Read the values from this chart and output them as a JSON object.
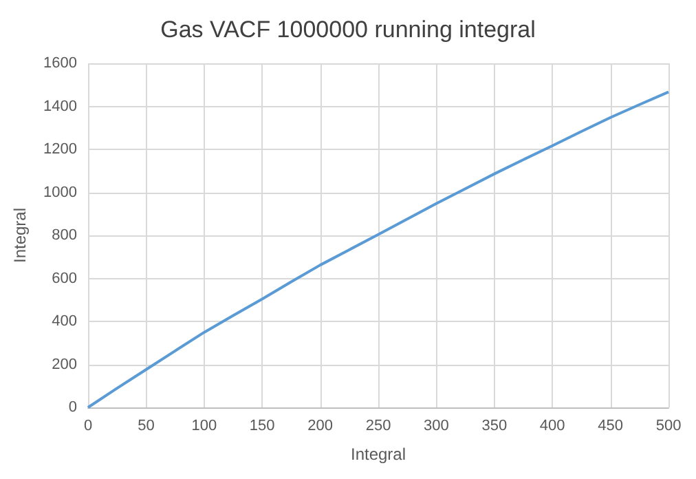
{
  "chart_data": {
    "type": "line",
    "title": "Gas VACF 1000000 running integral",
    "xlabel": "Integral",
    "ylabel": "Integral",
    "x": [
      0,
      25,
      50,
      75,
      100,
      125,
      150,
      175,
      200,
      225,
      250,
      275,
      300,
      325,
      350,
      375,
      400,
      425,
      450,
      475,
      500
    ],
    "series": [
      {
        "color": "#5b9bd5",
        "values": [
          0,
          89,
          176,
          263,
          349,
          427,
          504,
          584,
          662,
          733,
          804,
          876,
          948,
          1017,
          1086,
          1152,
          1217,
          1283,
          1348,
          1408,
          1467
        ]
      }
    ],
    "xlim": [
      0,
      500
    ],
    "xticks": [
      0,
      50,
      100,
      150,
      200,
      250,
      300,
      350,
      400,
      450,
      500
    ],
    "ylim": [
      0,
      1600
    ],
    "yticks": [
      0,
      200,
      400,
      600,
      800,
      1000,
      1200,
      1400,
      1600
    ],
    "grid": true,
    "marker": "none",
    "line_style": "solid"
  }
}
